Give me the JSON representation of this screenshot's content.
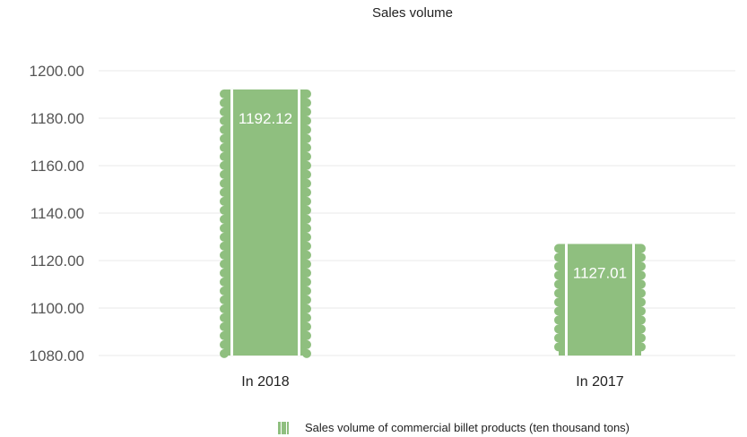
{
  "chart_data": {
    "type": "bar",
    "title": "Sales volume",
    "categories": [
      "In 2018",
      "In 2017"
    ],
    "series": [
      {
        "name": "Sales volume of commercial billet products (ten thousand tons)",
        "values": [
          1192.12,
          1127.01
        ],
        "data_labels": [
          "1192.12",
          "1127.01"
        ]
      }
    ],
    "ylim": [
      1080,
      1200
    ],
    "yticks": [
      "1080.00",
      "1100.00",
      "1120.00",
      "1140.00",
      "1160.00",
      "1180.00",
      "1200.00"
    ],
    "grid": true,
    "legend_position": "bottom",
    "bar_color": "#8fbf7f",
    "grid_color": "#e8e8e8"
  }
}
